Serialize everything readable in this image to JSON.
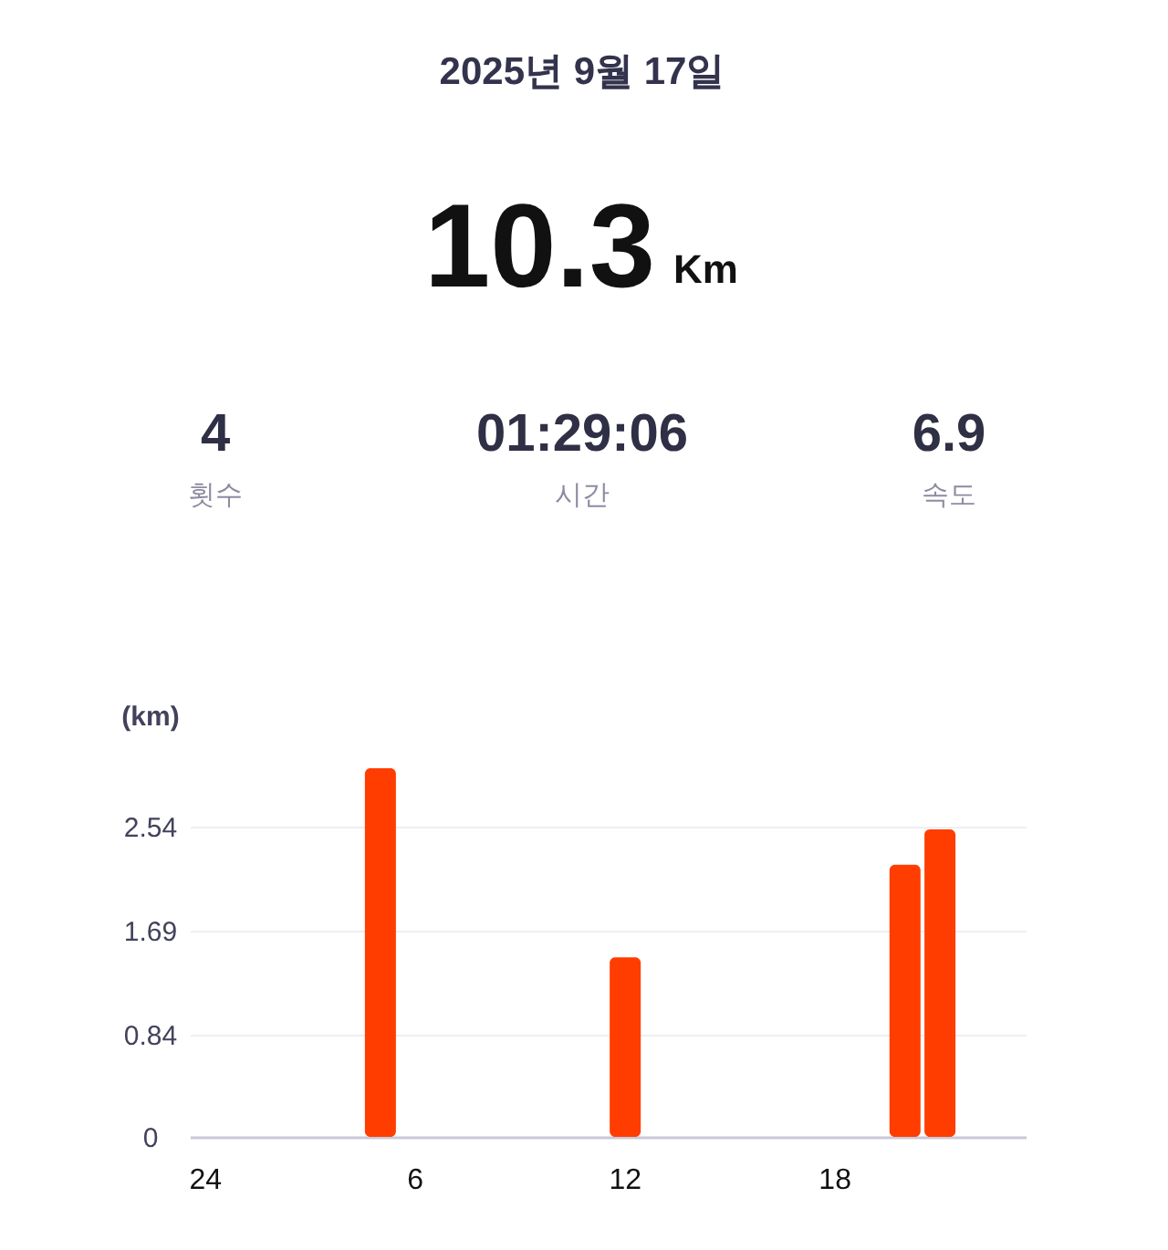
{
  "chart_data": {
    "type": "bar",
    "title": "2025년 9월 17일",
    "annotations": [
      "10.3",
      "Km",
      "4",
      "횟수",
      "01:29:06",
      "시간",
      "6.9",
      "속도"
    ],
    "ylabel": "(km)",
    "categories": [
      "24",
      null,
      null,
      null,
      null,
      null,
      "6",
      null,
      null,
      null,
      null,
      null,
      "12",
      null,
      null,
      null,
      null,
      null,
      "18",
      null,
      null,
      null,
      null,
      null
    ],
    "values": [
      null,
      null,
      null,
      null,
      null,
      3.02,
      null,
      null,
      null,
      null,
      null,
      null,
      1.47,
      null,
      null,
      null,
      null,
      null,
      null,
      null,
      2.23,
      2.52,
      null,
      null
    ],
    "color": "#ff3d00",
    "ylim": [
      0,
      3.02
    ],
    "yticks": [
      0,
      0.84,
      1.69,
      2.54
    ],
    "grid": "y"
  }
}
